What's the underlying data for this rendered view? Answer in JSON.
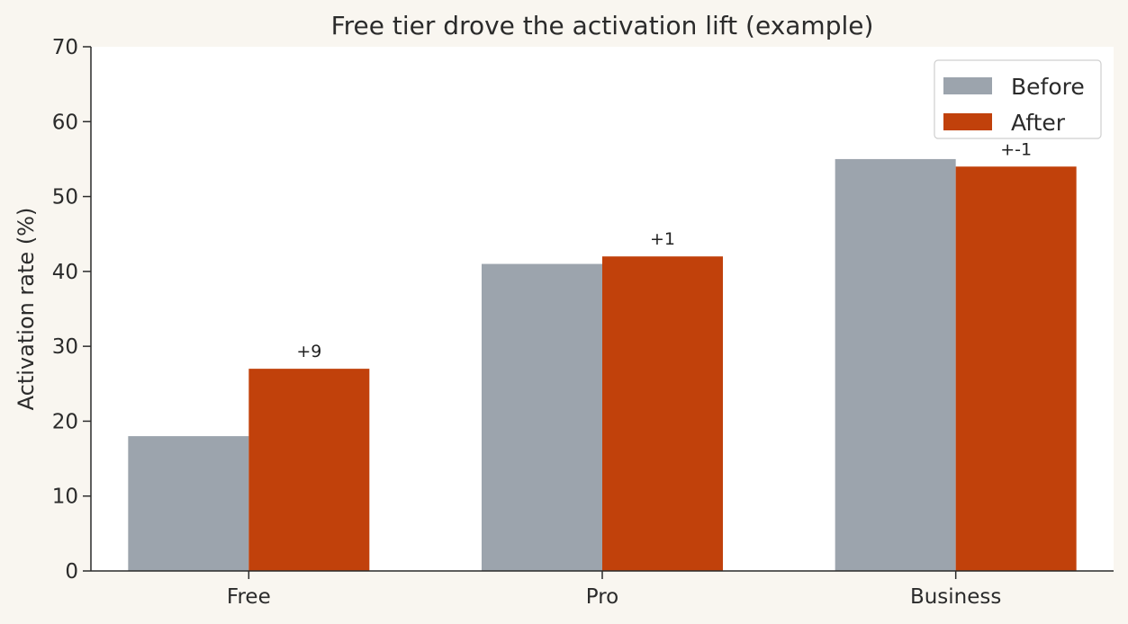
{
  "chart_data": {
    "type": "bar",
    "title": "Free tier drove the activation lift (example)",
    "xlabel": "",
    "ylabel": "Activation rate (%)",
    "categories": [
      "Free",
      "Pro",
      "Business"
    ],
    "series": [
      {
        "name": "Before",
        "values": [
          18,
          41,
          55
        ],
        "color": "#9ca4ad"
      },
      {
        "name": "After",
        "values": [
          27,
          42,
          54
        ],
        "color": "#c1410b"
      }
    ],
    "bar_labels": [
      "+9",
      "+1",
      "+-1"
    ],
    "ylim": [
      0,
      70
    ],
    "yticks": [
      0,
      10,
      20,
      30,
      40,
      50,
      60,
      70
    ],
    "grid": false,
    "legend_position": "top-right"
  },
  "colors": {
    "page_background": "#f9f6f0",
    "plot_background": "#ffffff",
    "axis": "#2b2b2b"
  }
}
